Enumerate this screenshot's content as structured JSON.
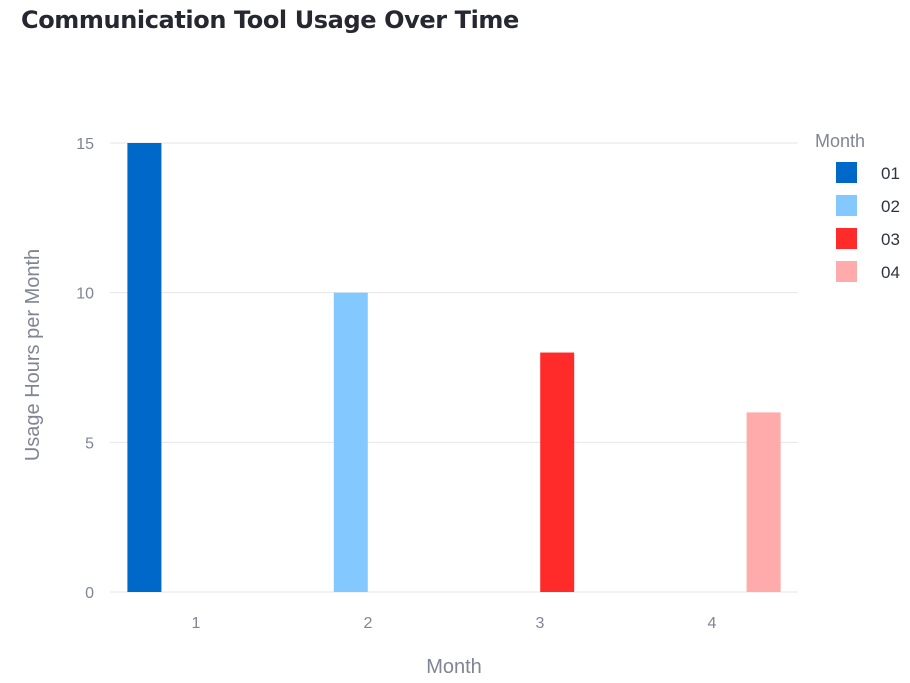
{
  "chart_data": {
    "type": "bar",
    "title": "Communication Tool Usage Over Time",
    "xlabel": "Month",
    "ylabel": "Usage Hours per Month",
    "categories": [
      1,
      2,
      3,
      4
    ],
    "ylim": [
      0,
      15
    ],
    "yticks": [
      0,
      5,
      10,
      15
    ],
    "grid": true,
    "legend": {
      "title": "Month",
      "placement": "right",
      "entries": [
        "01",
        "02",
        "03",
        "04"
      ]
    },
    "series": [
      {
        "name": "01",
        "x": 1,
        "value": 15,
        "color": "#0068c9"
      },
      {
        "name": "02",
        "x": 2,
        "value": 10,
        "color": "#83c9ff"
      },
      {
        "name": "03",
        "x": 3,
        "value": 8,
        "color": "#ff2b2b"
      },
      {
        "name": "04",
        "x": 4,
        "value": 6,
        "color": "#ffabab"
      }
    ]
  }
}
